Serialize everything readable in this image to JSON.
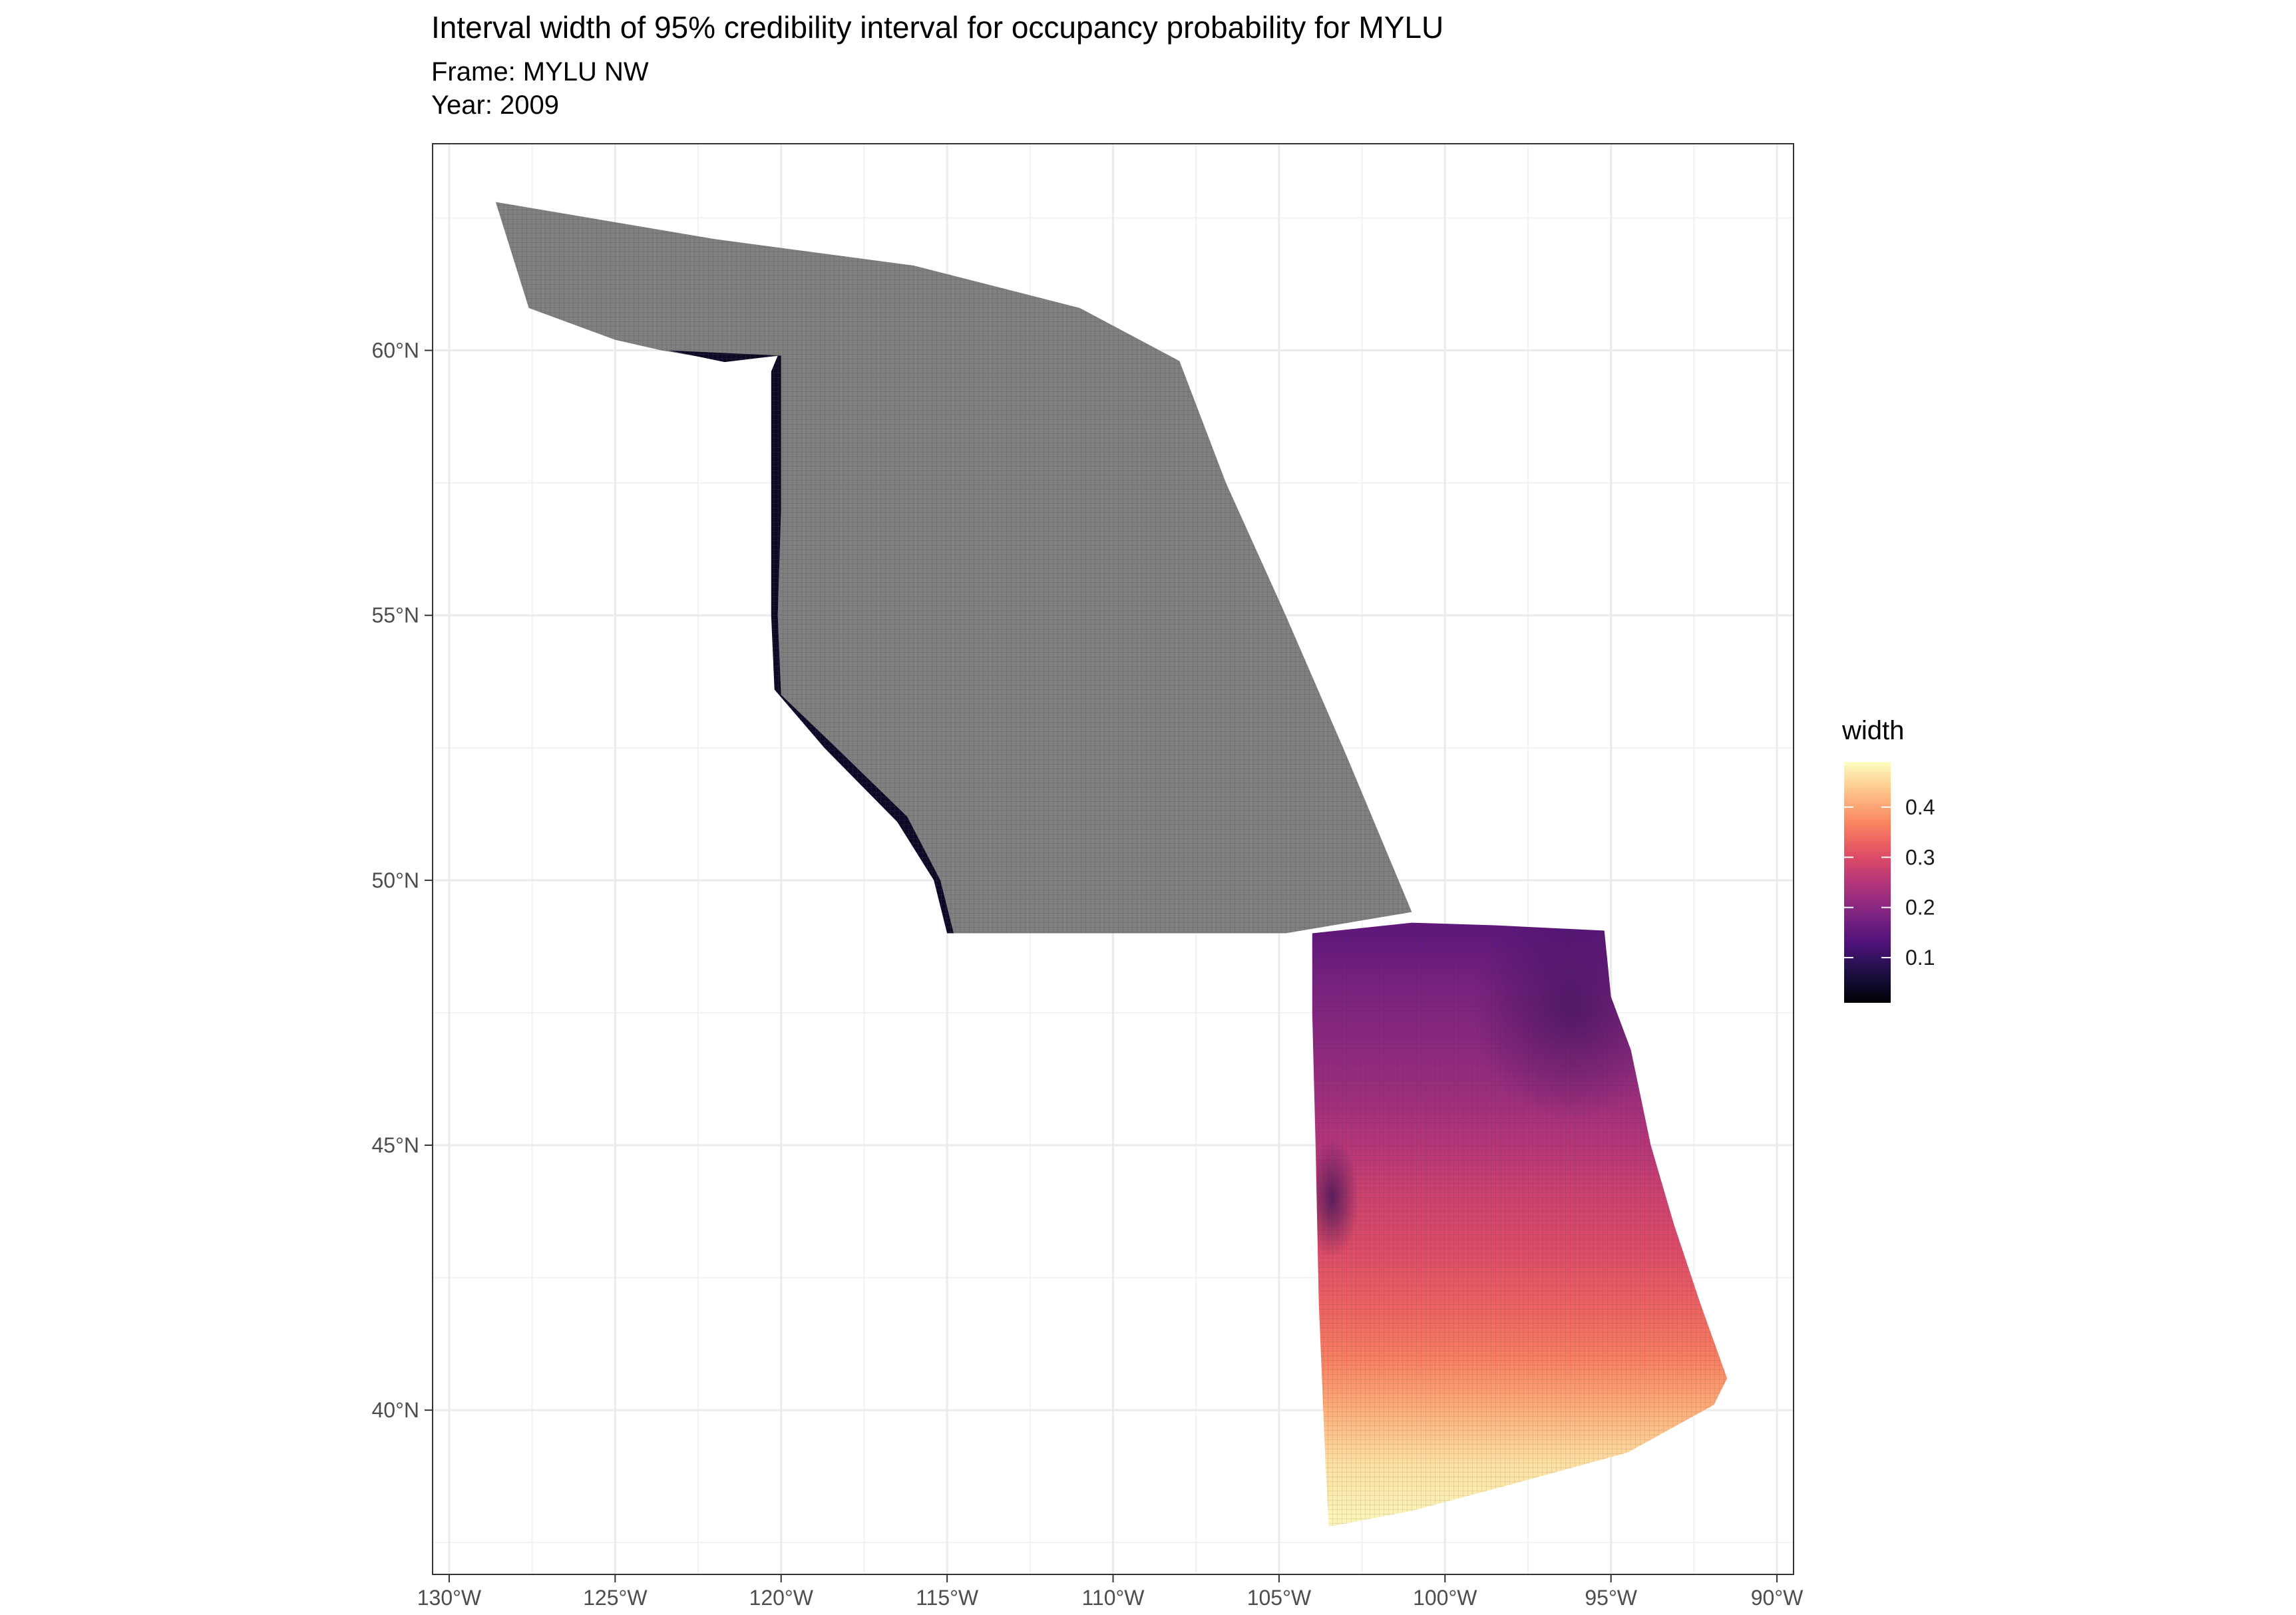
{
  "chart_data": {
    "type": "heatmap",
    "title": "Interval width of 95% credibility interval for occupancy probability for MYLU",
    "subtitle": [
      "Frame: MYLU NW",
      "Year: 2009"
    ],
    "xlabel": "",
    "ylabel": "",
    "xlim": [
      -130.5,
      -89.5
    ],
    "ylim": [
      36.9,
      63.9
    ],
    "x_ticks": [
      -130,
      -125,
      -120,
      -115,
      -110,
      -105,
      -100,
      -95,
      -90
    ],
    "x_tick_labels": [
      "130°W",
      "125°W",
      "120°W",
      "115°W",
      "110°W",
      "105°W",
      "100°W",
      "95°W",
      "90°W"
    ],
    "y_ticks": [
      40,
      45,
      50,
      55,
      60
    ],
    "y_tick_labels": [
      "40°N",
      "45°N",
      "50°N",
      "55°N",
      "60°N"
    ],
    "grid": true,
    "legend": {
      "title": "width",
      "position": "right",
      "palette": "magma",
      "range": [
        0.01,
        0.49
      ],
      "breaks": [
        0.1,
        0.2,
        0.3,
        0.4
      ],
      "break_labels": [
        "0.1",
        "0.2",
        "0.3",
        "0.4"
      ]
    },
    "regions": [
      {
        "name": "northern region (no data)",
        "fill": "#808080",
        "polygon": [
          [
            -128.6,
            62.8
          ],
          [
            -122.0,
            62.1
          ],
          [
            -116.0,
            61.6
          ],
          [
            -111.0,
            60.8
          ],
          [
            -108.0,
            59.8
          ],
          [
            -106.6,
            57.5
          ],
          [
            -104.8,
            55.0
          ],
          [
            -103.0,
            52.4
          ],
          [
            -101.0,
            49.4
          ],
          [
            -104.8,
            49.0
          ],
          [
            -114.8,
            49.0
          ],
          [
            -115.2,
            50.0
          ],
          [
            -116.2,
            51.2
          ],
          [
            -118.5,
            52.6
          ],
          [
            -120.0,
            53.5
          ],
          [
            -120.1,
            55.0
          ],
          [
            -120.0,
            57.0
          ],
          [
            -120.0,
            58.8
          ],
          [
            -120.0,
            59.9
          ],
          [
            -121.7,
            59.8
          ],
          [
            -123.6,
            60.0
          ],
          [
            -125.0,
            60.2
          ],
          [
            -127.6,
            60.8
          ],
          [
            -128.1,
            61.8
          ]
        ]
      },
      {
        "name": "northern region dark edge",
        "fill": "#0c0826",
        "polygon": [
          [
            -123.4,
            60.0
          ],
          [
            -121.7,
            59.78
          ],
          [
            -120.1,
            59.9
          ],
          [
            -120.3,
            59.6
          ],
          [
            -120.3,
            58.5
          ],
          [
            -120.3,
            57.0
          ],
          [
            -120.3,
            55.0
          ],
          [
            -120.2,
            53.6
          ],
          [
            -118.7,
            52.5
          ],
          [
            -116.5,
            51.1
          ],
          [
            -115.4,
            50.0
          ],
          [
            -115.0,
            49.0
          ],
          [
            -114.8,
            49.0
          ],
          [
            -115.2,
            50.0
          ],
          [
            -116.2,
            51.2
          ],
          [
            -118.5,
            52.6
          ],
          [
            -120.0,
            53.5
          ],
          [
            -120.1,
            55.0
          ],
          [
            -120.0,
            57.0
          ],
          [
            -120.0,
            58.8
          ],
          [
            -120.0,
            59.9
          ],
          [
            -121.7,
            59.95
          ]
        ]
      },
      {
        "name": "southern region",
        "polygon": [
          [
            -104.0,
            49.0
          ],
          [
            -101.0,
            49.2
          ],
          [
            -98.5,
            49.15
          ],
          [
            -95.2,
            49.05
          ],
          [
            -95.0,
            47.8
          ],
          [
            -94.4,
            46.8
          ],
          [
            -93.8,
            45.0
          ],
          [
            -93.1,
            43.5
          ],
          [
            -92.3,
            42.0
          ],
          [
            -91.5,
            40.6
          ],
          [
            -91.9,
            40.1
          ],
          [
            -94.5,
            39.2
          ],
          [
            -98.0,
            38.6
          ],
          [
            -101.0,
            38.1
          ],
          [
            -103.5,
            37.8
          ],
          [
            -103.6,
            39.0
          ],
          [
            -103.8,
            42.0
          ],
          [
            -103.9,
            45.0
          ],
          [
            -104.0,
            47.5
          ]
        ],
        "value_gradient": [
          {
            "lat": 49.0,
            "width": 0.15
          },
          {
            "lat": 48.0,
            "width": 0.18
          },
          {
            "lat": 47.0,
            "width": 0.2
          },
          {
            "lat": 46.0,
            "width": 0.22
          },
          {
            "lat": 45.0,
            "width": 0.25
          },
          {
            "lat": 44.0,
            "width": 0.28
          },
          {
            "lat": 43.0,
            "width": 0.3
          },
          {
            "lat": 42.0,
            "width": 0.33
          },
          {
            "lat": 41.0,
            "width": 0.36
          },
          {
            "lat": 40.0,
            "width": 0.41
          },
          {
            "lat": 39.0,
            "width": 0.46
          },
          {
            "lat": 38.0,
            "width": 0.48
          }
        ]
      }
    ]
  }
}
